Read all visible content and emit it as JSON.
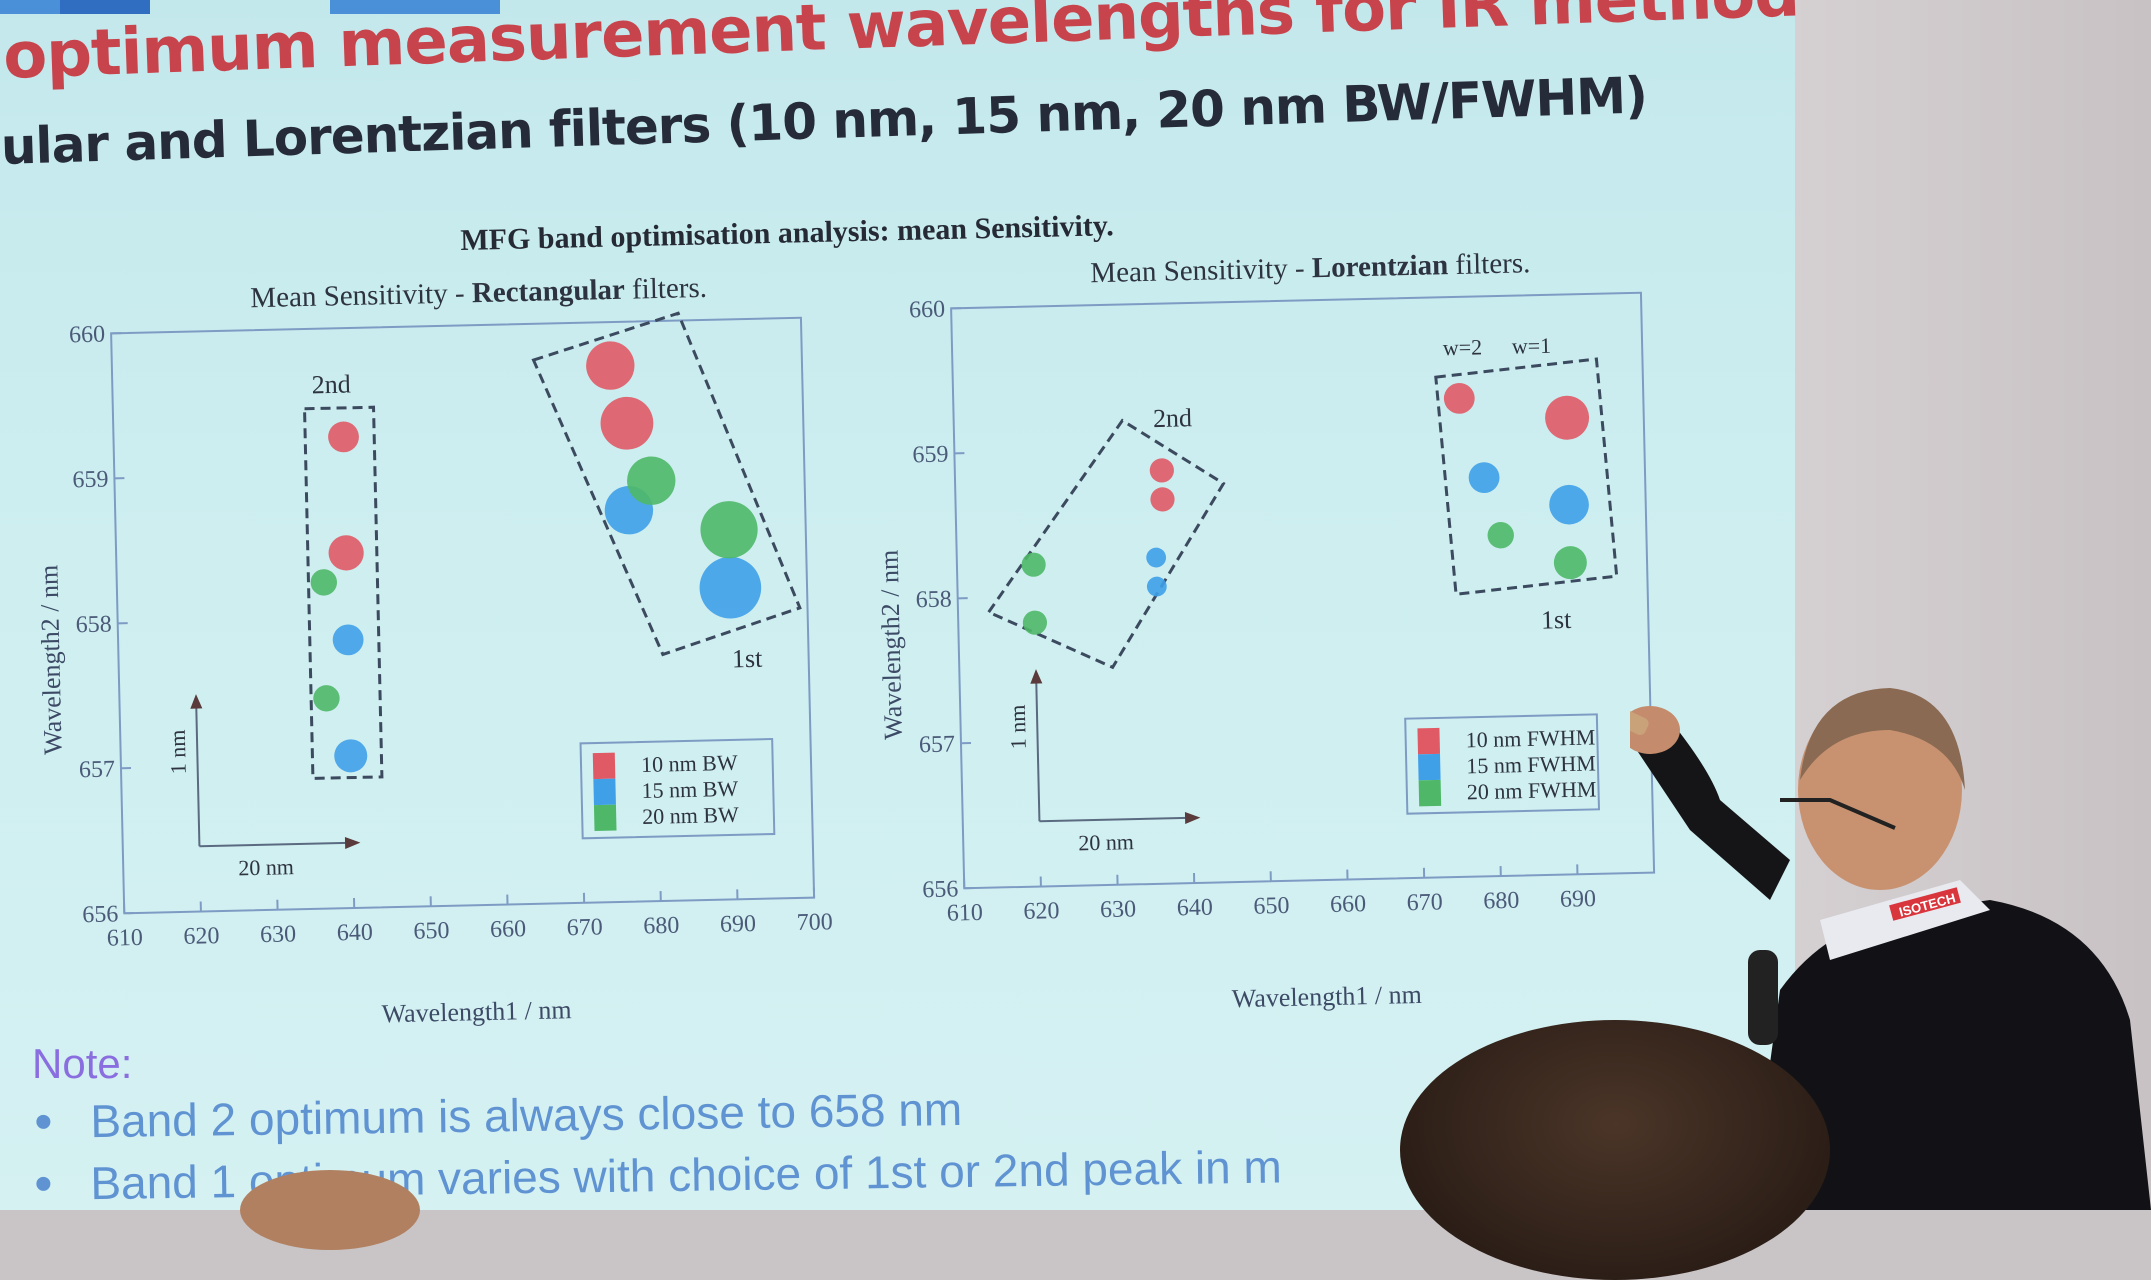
{
  "slide": {
    "title": "optimum measurement wavelengths for IR method",
    "subtitle": "ular and Lorentzian filters (10 nm, 15 nm, 20 nm BW/FWHM)",
    "figure_title": "MFG band optimisation analysis: mean Sensitivity.",
    "note_label": "Note:",
    "bullets": [
      "Band 2 optimum is always close to 658 nm",
      "Band 1 optimum varies with choice of 1st or 2nd peak in m"
    ],
    "badge": "ISOTECH"
  },
  "colors": {
    "title_red": "#c8444c",
    "series_red": "#e05a66",
    "series_blue": "#3fa0e8",
    "series_green": "#4fb868",
    "note_purple": "#8a6ee0",
    "bullet_blue": "#5f93d2",
    "axis": "#7e9bc4"
  },
  "chart_data": [
    {
      "type": "scatter",
      "title": "Mean Sensitivity - Rectangular filters.",
      "title_plain": "Mean Sensitivity - ",
      "title_bold": "Rectangular",
      "title_tail": " filters.",
      "xlabel": "Wavelength1 / nm",
      "ylabel": "Wavelength2 / nm",
      "xlim": [
        610,
        700
      ],
      "ylim": [
        656,
        660
      ],
      "xticks": [
        610,
        620,
        630,
        640,
        650,
        660,
        670,
        680,
        690,
        700
      ],
      "yticks": [
        656,
        657,
        658,
        659,
        660
      ],
      "legend": [
        "10 nm BW",
        "15 nm BW",
        "20 nm BW"
      ],
      "annotations": [
        "2nd",
        "1st",
        "1 nm",
        "20 nm"
      ],
      "series": [
        {
          "name": "10 nm BW",
          "color": "#e05a66",
          "points": [
            {
              "x": 640,
              "y": 659.25,
              "r": 14
            },
            {
              "x": 640,
              "y": 658.45,
              "r": 16
            },
            {
              "x": 675,
              "y": 659.7,
              "r": 22
            },
            {
              "x": 677,
              "y": 659.3,
              "r": 24
            }
          ]
        },
        {
          "name": "15 nm BW",
          "color": "#3fa0e8",
          "points": [
            {
              "x": 640,
              "y": 657.85,
              "r": 14
            },
            {
              "x": 640,
              "y": 657.05,
              "r": 15
            },
            {
              "x": 677,
              "y": 658.7,
              "r": 22
            },
            {
              "x": 690,
              "y": 658.15,
              "r": 28
            }
          ]
        },
        {
          "name": "20 nm BW",
          "color": "#4fb868",
          "points": [
            {
              "x": 637,
              "y": 658.25,
              "r": 12
            },
            {
              "x": 637,
              "y": 657.45,
              "r": 12
            },
            {
              "x": 680,
              "y": 658.9,
              "r": 22
            },
            {
              "x": 690,
              "y": 658.55,
              "r": 26
            }
          ]
        }
      ]
    },
    {
      "type": "scatter",
      "title": "Mean Sensitivity - Lorentzian filters.",
      "title_plain": "Mean Sensitivity - ",
      "title_bold": "Lorentzian",
      "title_tail": " filters.",
      "xlabel": "Wavelength1 / nm",
      "ylabel": "Wavelength2 / nm",
      "xlim": [
        610,
        700
      ],
      "ylim": [
        656,
        660
      ],
      "xticks": [
        610,
        620,
        630,
        640,
        650,
        660,
        670,
        680,
        690
      ],
      "yticks": [
        656,
        657,
        658,
        659,
        660
      ],
      "legend": [
        "10 nm FWHM",
        "15 nm FWHM",
        "20 nm FWHM"
      ],
      "annotations": [
        "2nd",
        "1st",
        "w=2",
        "w=1",
        "1 nm",
        "20 nm"
      ],
      "series": [
        {
          "name": "10 nm FWHM",
          "color": "#e05a66",
          "points": [
            {
              "x": 637,
              "y": 658.85,
              "r": 11
            },
            {
              "x": 637,
              "y": 658.65,
              "r": 11
            },
            {
              "x": 676,
              "y": 659.3,
              "r": 14
            },
            {
              "x": 690,
              "y": 659.15,
              "r": 20
            }
          ]
        },
        {
          "name": "15 nm FWHM",
          "color": "#3fa0e8",
          "points": [
            {
              "x": 636,
              "y": 658.25,
              "r": 9
            },
            {
              "x": 636,
              "y": 658.05,
              "r": 9
            },
            {
              "x": 679,
              "y": 658.75,
              "r": 14
            },
            {
              "x": 690,
              "y": 658.55,
              "r": 18
            }
          ]
        },
        {
          "name": "20 nm FWHM",
          "color": "#4fb868",
          "points": [
            {
              "x": 620,
              "y": 658.22,
              "r": 11
            },
            {
              "x": 620,
              "y": 657.82,
              "r": 11
            },
            {
              "x": 681,
              "y": 658.35,
              "r": 12
            },
            {
              "x": 690,
              "y": 658.15,
              "r": 15
            }
          ]
        }
      ]
    }
  ]
}
